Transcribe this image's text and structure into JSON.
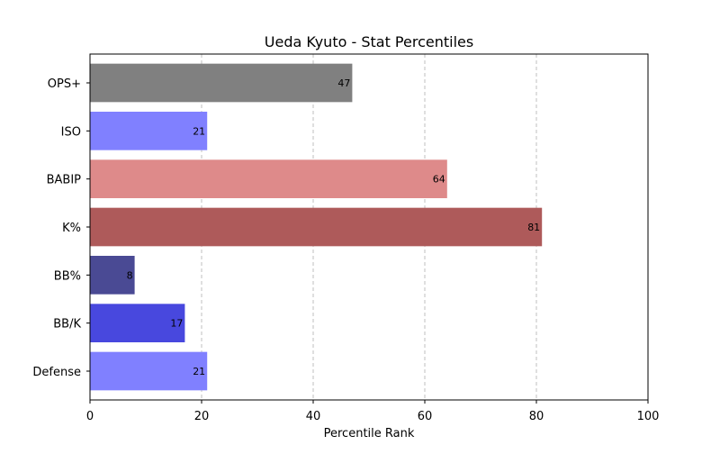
{
  "chart_data": {
    "type": "bar",
    "orientation": "horizontal",
    "title": "Ueda Kyuto - Stat Percentiles",
    "xlabel": "Percentile Rank",
    "ylabel": "",
    "xlim": [
      0,
      100
    ],
    "xticks": [
      0,
      20,
      40,
      60,
      80,
      100
    ],
    "grid": "x-dashed",
    "categories": [
      "OPS+",
      "ISO",
      "BABIP",
      "K%",
      "BB%",
      "BB/K",
      "Defense"
    ],
    "values": [
      47,
      21,
      64,
      81,
      8,
      17,
      21
    ],
    "colors": [
      "#808080",
      "#8080ff",
      "#de8a8a",
      "#ae5a5a",
      "#4a4a94",
      "#4848de",
      "#8080ff"
    ]
  }
}
